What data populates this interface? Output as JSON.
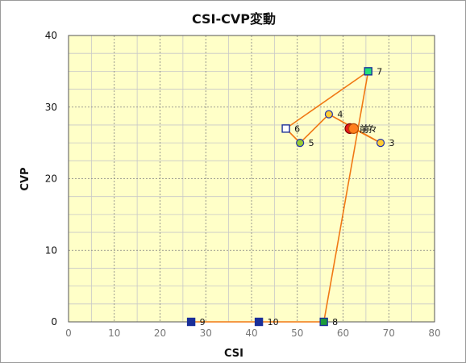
{
  "chart_data": {
    "type": "scatter",
    "title": "CSI-CVP変動",
    "xlabel": "CSI",
    "ylabel": "CVP",
    "xlim": [
      0,
      80
    ],
    "ylim": [
      0,
      40
    ],
    "x_ticks": [
      0,
      10,
      20,
      30,
      40,
      50,
      60,
      70,
      80
    ],
    "y_ticks": [
      0,
      10,
      20,
      30,
      40
    ],
    "grid": true,
    "minor_grid": true,
    "colors": {
      "plot_background": "#ffffc8",
      "major_grid": "#808080",
      "minor_grid": "#c8c8c8",
      "path_line": "#f07814"
    },
    "path_order": [
      "前々",
      "前",
      "3",
      "4",
      "5",
      "6",
      "7",
      "8",
      "9",
      "10"
    ],
    "points": [
      {
        "label": "前々",
        "x": 61.5,
        "y": 27,
        "marker": "circle",
        "fill": "#e81a1a",
        "stroke": "#7a0000",
        "r": 6
      },
      {
        "label": "前",
        "x": 62.3,
        "y": 27,
        "marker": "circle",
        "fill": "#ff7f1e",
        "stroke": "#b04a00",
        "r": 6
      },
      {
        "label": "3",
        "x": 68.2,
        "y": 25,
        "marker": "circle",
        "fill": "#ffcc33",
        "stroke": "#2233aa",
        "r": 4.5
      },
      {
        "label": "4",
        "x": 56.9,
        "y": 29,
        "marker": "circle",
        "fill": "#ffcc33",
        "stroke": "#2233aa",
        "r": 4.5
      },
      {
        "label": "5",
        "x": 50.6,
        "y": 25,
        "marker": "circle",
        "fill": "#99cc33",
        "stroke": "#2233aa",
        "r": 4.5
      },
      {
        "label": "6",
        "x": 47.5,
        "y": 27,
        "marker": "square",
        "fill": "#ffffff",
        "stroke": "#1a2f99",
        "s": 9
      },
      {
        "label": "7",
        "x": 65.5,
        "y": 35,
        "marker": "square",
        "fill": "#22e07a",
        "stroke": "#1a2f99",
        "s": 9
      },
      {
        "label": "8",
        "x": 55.8,
        "y": 0,
        "marker": "square",
        "fill": "#1a9a3a",
        "stroke": "#1a2f99",
        "s": 9
      },
      {
        "label": "9",
        "x": 26.8,
        "y": 0,
        "marker": "square",
        "fill": "#1a2f99",
        "stroke": "#1a2f99",
        "s": 9
      },
      {
        "label": "10",
        "x": 41.6,
        "y": 0,
        "marker": "square",
        "fill": "#1a2f99",
        "stroke": "#1a2f99",
        "s": 9
      }
    ]
  }
}
